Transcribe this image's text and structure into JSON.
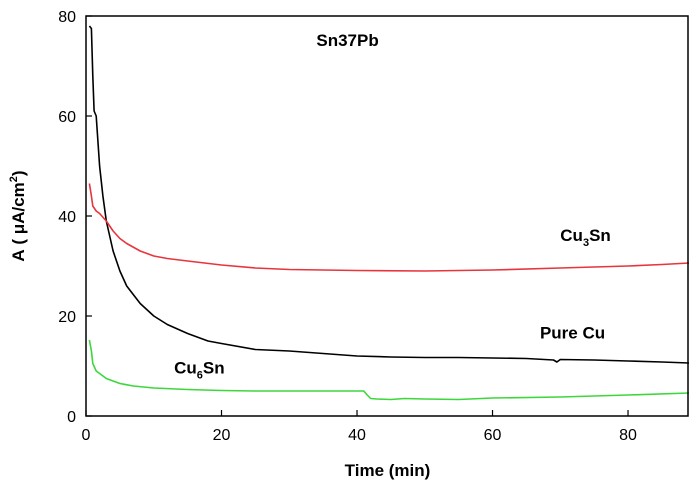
{
  "chart_data": {
    "type": "line",
    "title": "",
    "xlabel": "Time (min)",
    "ylabel": "A (μA/cm²)",
    "ylabel_parts": {
      "pre": "A ( μA/cm",
      "sup": "2",
      "post": ")"
    },
    "xlim": [
      0,
      89
    ],
    "ylim": [
      0,
      80
    ],
    "xticks": [
      0,
      20,
      40,
      60,
      80
    ],
    "yticks": [
      0,
      20,
      40,
      60,
      80
    ],
    "grid": false,
    "legend": "none",
    "annotations": [
      {
        "id": "sn37pb",
        "text": "Sn37Pb",
        "x": 34,
        "y": 74
      },
      {
        "id": "cu3sn",
        "base": "Cu",
        "sub": "3",
        "tail": "Sn",
        "x": 70,
        "y": 35
      },
      {
        "id": "pure-cu",
        "text": "Pure Cu",
        "x": 67,
        "y": 15.5
      },
      {
        "id": "cu6sn",
        "base": "Cu",
        "sub": "6",
        "tail": "Sn",
        "x": 13,
        "y": 8.5
      }
    ],
    "series": [
      {
        "id": "pure-cu",
        "color": "#000000",
        "x": [
          0.5,
          0.8,
          1.0,
          1.2,
          1.5,
          2.0,
          2.5,
          3.0,
          4.0,
          5.0,
          6.0,
          8.0,
          10.0,
          12.0,
          15.0,
          18.0,
          20.0,
          25.0,
          30.0,
          35.0,
          40.0,
          45.0,
          50.0,
          55.0,
          60.0,
          65.0,
          69.0,
          69.5,
          70.0,
          75.0,
          80.0,
          85.0,
          89.0
        ],
        "y": [
          78.0,
          77.5,
          68.0,
          61.0,
          60.0,
          50.0,
          44.0,
          39.0,
          33.0,
          29.0,
          26.0,
          22.5,
          20.0,
          18.3,
          16.5,
          15.0,
          14.5,
          13.3,
          13.0,
          12.5,
          12.0,
          11.8,
          11.7,
          11.7,
          11.6,
          11.5,
          11.2,
          10.8,
          11.3,
          11.2,
          11.0,
          10.8,
          10.6
        ]
      },
      {
        "id": "cu3sn",
        "color": "#e8343c",
        "x": [
          0.5,
          0.8,
          1.0,
          1.5,
          2.0,
          3.0,
          4.0,
          5.0,
          6.0,
          8.0,
          10.0,
          12.0,
          15.0,
          20.0,
          25.0,
          30.0,
          40.0,
          50.0,
          60.0,
          70.0,
          80.0,
          85.0,
          89.0
        ],
        "y": [
          46.5,
          44.0,
          42.0,
          41.0,
          40.5,
          39.0,
          37.0,
          35.5,
          34.5,
          33.0,
          32.0,
          31.5,
          31.0,
          30.2,
          29.6,
          29.3,
          29.1,
          29.0,
          29.2,
          29.6,
          30.0,
          30.3,
          30.6
        ]
      },
      {
        "id": "cu6sn",
        "color": "#3dd73d",
        "x": [
          0.5,
          0.8,
          1.0,
          1.5,
          2.0,
          3.0,
          4.0,
          5.0,
          7.0,
          10.0,
          15.0,
          20.0,
          25.0,
          30.0,
          35.0,
          40.0,
          41.0,
          41.5,
          42.0,
          43.0,
          45.0,
          47.0,
          50.0,
          55.0,
          60.0,
          70.0,
          80.0,
          89.0
        ],
        "y": [
          15.2,
          13.0,
          10.5,
          9.0,
          8.5,
          7.5,
          7.0,
          6.5,
          6.0,
          5.6,
          5.3,
          5.1,
          5.0,
          5.0,
          5.0,
          5.0,
          5.0,
          4.2,
          3.5,
          3.4,
          3.3,
          3.5,
          3.4,
          3.3,
          3.6,
          3.8,
          4.2,
          4.6
        ]
      }
    ]
  }
}
